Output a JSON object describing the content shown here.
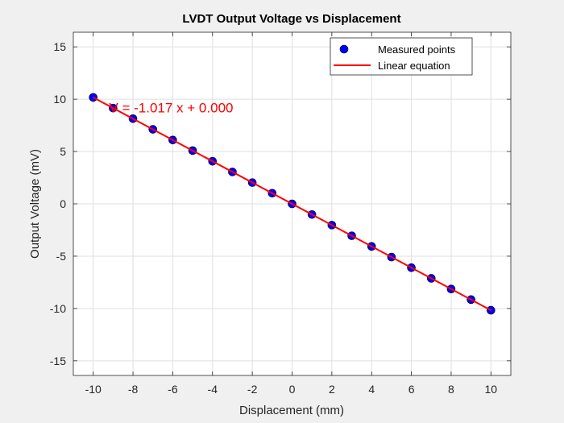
{
  "chart_data": {
    "type": "line",
    "title": "LVDT Output Voltage vs Displacement",
    "xlabel": "Displacement (mm)",
    "ylabel": "Output Voltage (mV)",
    "xlim": [
      -11,
      11
    ],
    "ylim": [
      -16.4,
      16.4
    ],
    "xticks": [
      -10,
      -8,
      -6,
      -4,
      -2,
      0,
      2,
      4,
      6,
      8,
      10
    ],
    "yticks": [
      -15,
      -10,
      -5,
      0,
      5,
      10,
      15
    ],
    "grid": true,
    "legend_position": "top-right",
    "series": [
      {
        "name": "Measured points",
        "type": "scatter",
        "color": "#0000ff",
        "x": [
          -10,
          -9,
          -8,
          -7,
          -6,
          -5,
          -4,
          -3,
          -2,
          -1,
          0,
          1,
          2,
          3,
          4,
          5,
          6,
          7,
          8,
          9,
          10
        ],
        "y": [
          10.17,
          9.15,
          8.14,
          7.12,
          6.1,
          5.09,
          4.07,
          3.05,
          2.03,
          1.02,
          0,
          -1.02,
          -2.03,
          -3.05,
          -4.07,
          -5.09,
          -6.1,
          -7.12,
          -8.14,
          -9.15,
          -10.17
        ]
      },
      {
        "name": "Linear equation",
        "type": "line",
        "color": "#ff0000",
        "x": [
          -10,
          10
        ],
        "y": [
          10.17,
          -10.17
        ]
      }
    ],
    "annotation": {
      "text": "V = -1.017 x + 0.000",
      "x": -9.2,
      "y": 9.1,
      "color": "#ff0000"
    }
  }
}
